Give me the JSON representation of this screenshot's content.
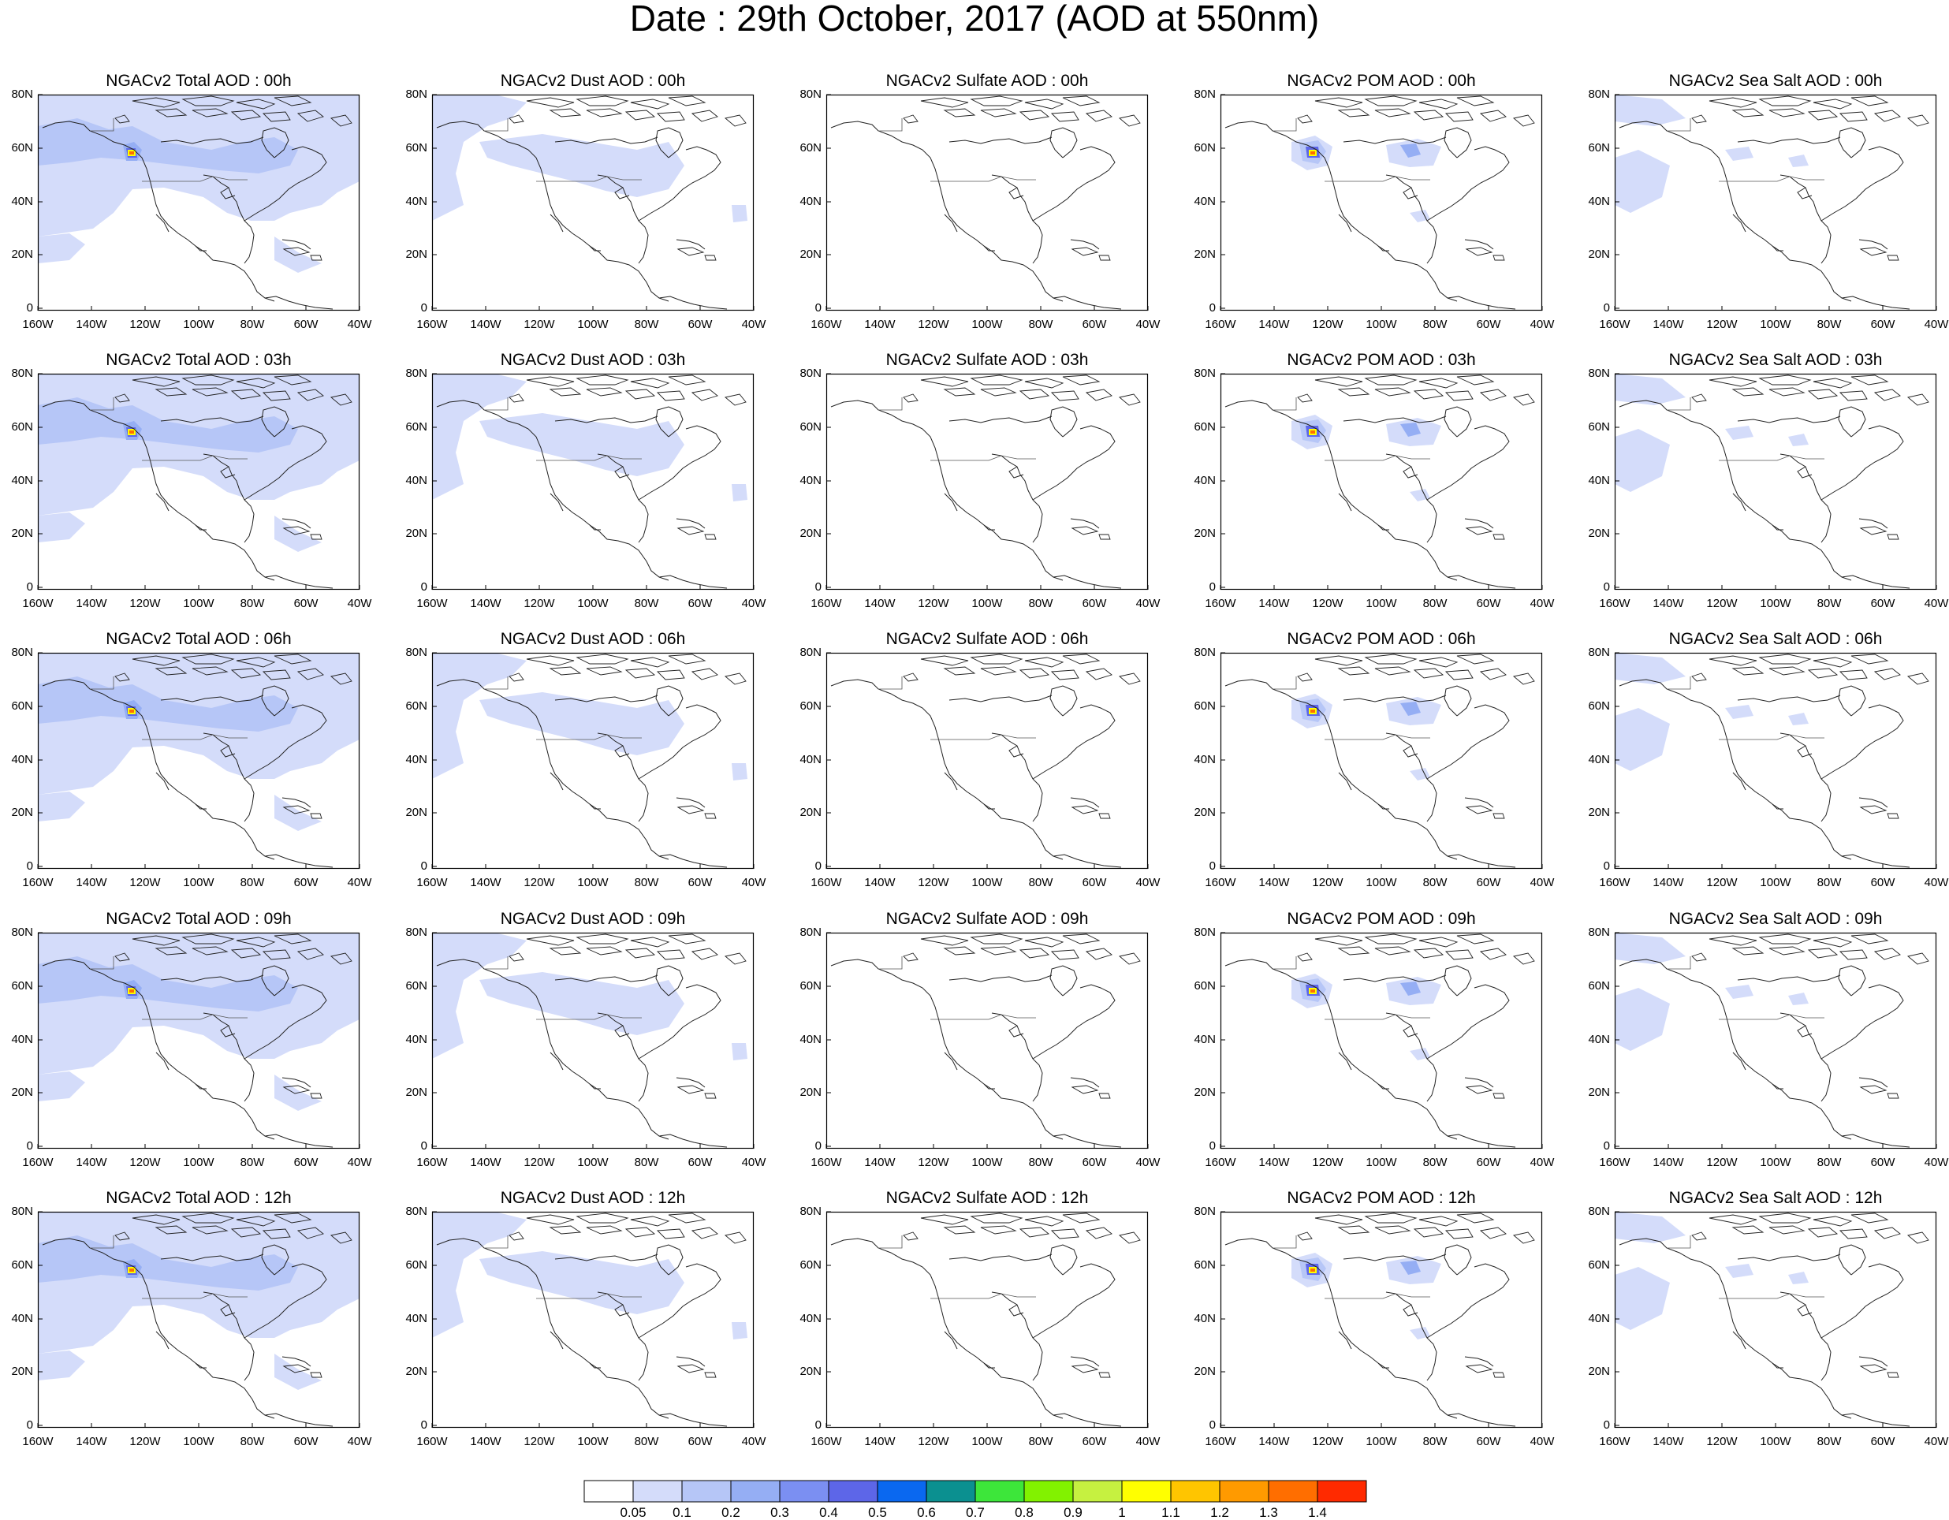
{
  "title": "Date : 29th October, 2017 (AOD at 550nm)",
  "axes": {
    "lat_ticks": [
      "80N",
      "60N",
      "40N",
      "20N",
      "0"
    ],
    "lon_ticks": [
      "160W",
      "140W",
      "120W",
      "100W",
      "80W",
      "60W",
      "40W"
    ]
  },
  "colorbar": {
    "labels": [
      "0.05",
      "0.1",
      "0.2",
      "0.3",
      "0.4",
      "0.5",
      "0.6",
      "0.7",
      "0.8",
      "0.9",
      "1",
      "1.1",
      "1.2",
      "1.3",
      "1.4"
    ],
    "colors": [
      "#ffffff",
      "#d4dcfa",
      "#b6c6f7",
      "#95aef4",
      "#7b8ff2",
      "#5d66e8",
      "#0a68f0",
      "#0b9090",
      "#3de63a",
      "#82f200",
      "#c6f140",
      "#ffff00",
      "#ffc500",
      "#ff9a00",
      "#ff6e00",
      "#ff2a00"
    ]
  },
  "panels": [
    {
      "title": "NGACv2 Total AOD : 00h",
      "species": "total"
    },
    {
      "title": "NGACv2 Dust AOD : 00h",
      "species": "dust"
    },
    {
      "title": "NGACv2 Sulfate AOD : 00h",
      "species": "sulfate"
    },
    {
      "title": "NGACv2 POM AOD : 00h",
      "species": "pom"
    },
    {
      "title": "NGACv2 Sea Salt AOD : 00h",
      "species": "seasalt"
    },
    {
      "title": "NGACv2 Total AOD : 03h",
      "species": "total"
    },
    {
      "title": "NGACv2 Dust AOD : 03h",
      "species": "dust"
    },
    {
      "title": "NGACv2 Sulfate AOD : 03h",
      "species": "sulfate"
    },
    {
      "title": "NGACv2 POM AOD : 03h",
      "species": "pom"
    },
    {
      "title": "NGACv2 Sea Salt AOD : 03h",
      "species": "seasalt"
    },
    {
      "title": "NGACv2 Total AOD : 06h",
      "species": "total"
    },
    {
      "title": "NGACv2 Dust AOD : 06h",
      "species": "dust"
    },
    {
      "title": "NGACv2 Sulfate AOD : 06h",
      "species": "sulfate"
    },
    {
      "title": "NGACv2 POM AOD : 06h",
      "species": "pom"
    },
    {
      "title": "NGACv2 Sea Salt AOD : 06h",
      "species": "seasalt"
    },
    {
      "title": "NGACv2 Total AOD : 09h",
      "species": "total"
    },
    {
      "title": "NGACv2 Dust AOD : 09h",
      "species": "dust"
    },
    {
      "title": "NGACv2 Sulfate AOD : 09h",
      "species": "sulfate"
    },
    {
      "title": "NGACv2 POM AOD : 09h",
      "species": "pom"
    },
    {
      "title": "NGACv2 Sea Salt  AOD : 09h",
      "species": "seasalt"
    },
    {
      "title": "NGACv2 Total AOD  : 12h",
      "species": "total"
    },
    {
      "title": "NGACv2 Dust AOD : 12h",
      "species": "dust"
    },
    {
      "title": "NGACv2 Sulfate AOD : 12h",
      "species": "sulfate"
    },
    {
      "title": "NGACv2 POM  AOD : 12h",
      "species": "pom"
    },
    {
      "title": "NGACv2 Sea Salt  AOD : 12h",
      "species": "seasalt"
    }
  ]
}
